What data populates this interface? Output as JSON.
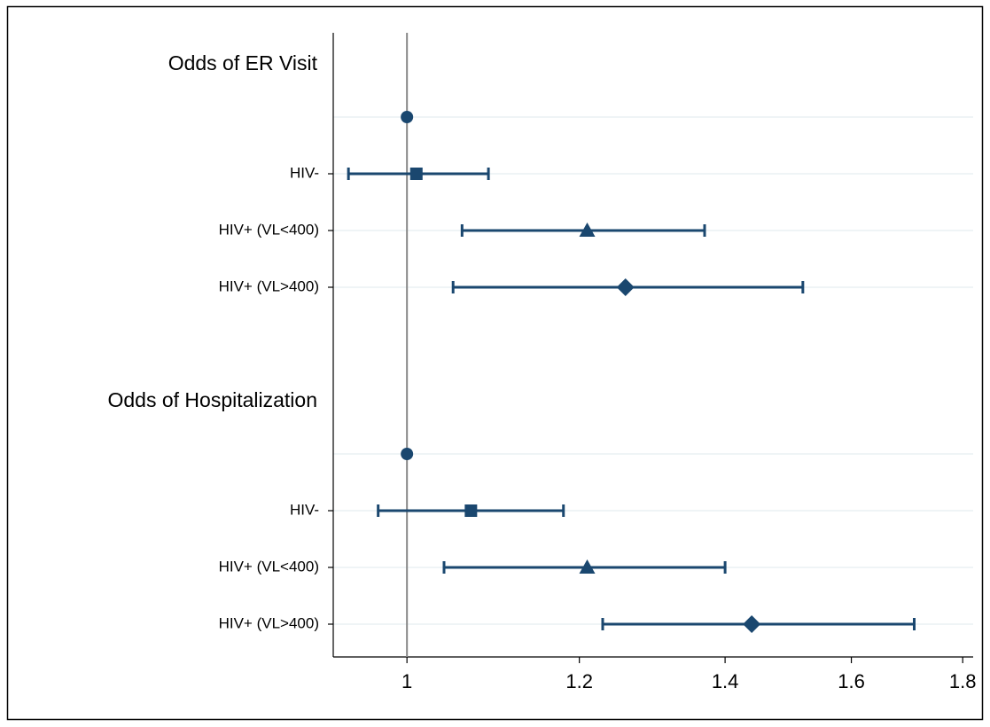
{
  "chart_data": {
    "type": "forest",
    "log_x": true,
    "xlim": [
      0.925,
      1.82
    ],
    "xticks": [
      1,
      1.2,
      1.4,
      1.6,
      1.8
    ],
    "ref_line": 1,
    "grid": true,
    "color": "#1a476f",
    "groups": [
      {
        "title": "Odds of ER Visit",
        "rows": [
          {
            "label": null,
            "marker": "circle",
            "est": 1,
            "lo": null,
            "hi": null
          },
          {
            "label": "HIV-",
            "marker": "square",
            "est": 1.01,
            "lo": 0.94,
            "hi": 1.09
          },
          {
            "label": "HIV+ (VL<400)",
            "marker": "triangle",
            "est": 1.21,
            "lo": 1.06,
            "hi": 1.37
          },
          {
            "label": "HIV+ (VL>400)",
            "marker": "diamond",
            "est": 1.26,
            "lo": 1.05,
            "hi": 1.52
          }
        ]
      },
      {
        "title": "Odds of Hospitalization",
        "rows": [
          {
            "label": null,
            "marker": "circle",
            "est": 1,
            "lo": null,
            "hi": null
          },
          {
            "label": "HIV-",
            "marker": "square",
            "est": 1.07,
            "lo": 0.97,
            "hi": 1.18
          },
          {
            "label": "HIV+ (VL<400)",
            "marker": "triangle",
            "est": 1.21,
            "lo": 1.04,
            "hi": 1.4
          },
          {
            "label": "HIV+ (VL>400)",
            "marker": "diamond",
            "est": 1.44,
            "lo": 1.23,
            "hi": 1.71
          }
        ]
      }
    ]
  }
}
